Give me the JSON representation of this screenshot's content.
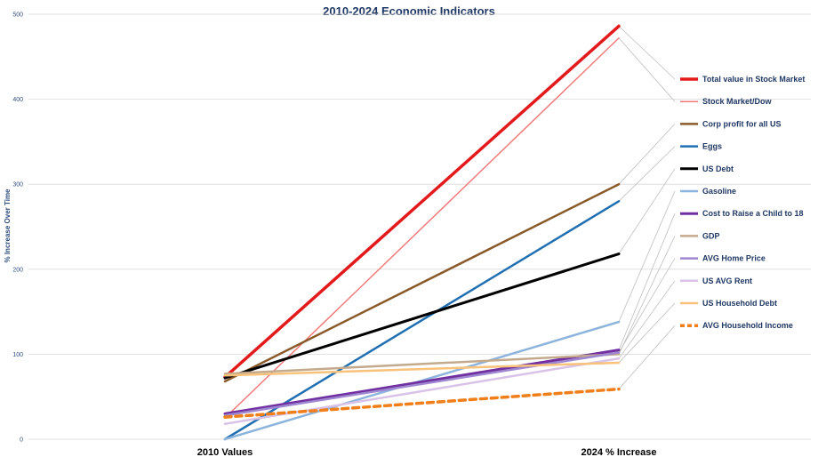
{
  "chart_data": {
    "type": "line",
    "title": "2010-2024 Economic Indicators",
    "xlabel": "",
    "ylabel": "% Increase Over Time",
    "categories": [
      "2010 Values",
      "2024 % Increase"
    ],
    "ylim": [
      0,
      500
    ],
    "yticks": [
      0,
      100,
      200,
      300,
      400,
      500
    ],
    "grid": true,
    "legend_placement": "right",
    "series": [
      {
        "name": "Total value in Stock Market",
        "values": [
          73,
          486
        ],
        "color": "#e31a1c",
        "width": 3.5,
        "dashed": false
      },
      {
        "name": "Stock Market/Dow",
        "values": [
          25,
          472
        ],
        "color": "#f07a7a",
        "width": 1.5,
        "dashed": false
      },
      {
        "name": "Corp profit for all US",
        "values": [
          68,
          300
        ],
        "color": "#8b5a2b",
        "width": 2.5,
        "dashed": false
      },
      {
        "name": "Eggs",
        "values": [
          0,
          280
        ],
        "color": "#1f6fb2",
        "width": 2.5,
        "dashed": false
      },
      {
        "name": "US Debt",
        "values": [
          72,
          218
        ],
        "color": "#000000",
        "width": 3,
        "dashed": false
      },
      {
        "name": "Gasoline",
        "values": [
          0,
          138
        ],
        "color": "#8db4dc",
        "width": 2.5,
        "dashed": false
      },
      {
        "name": "Cost to Raise a Child to 18",
        "values": [
          30,
          105
        ],
        "color": "#7030a0",
        "width": 3,
        "dashed": false
      },
      {
        "name": "GDP",
        "values": [
          77,
          100
        ],
        "color": "#c4aa8c",
        "width": 2.5,
        "dashed": false
      },
      {
        "name": "AVG Home Price",
        "values": [
          28,
          102
        ],
        "color": "#9f86d0",
        "width": 2.5,
        "dashed": false
      },
      {
        "name": "US AVG Rent",
        "values": [
          18,
          95
        ],
        "color": "#d9c2e8",
        "width": 2.5,
        "dashed": false
      },
      {
        "name": "US Household Debt",
        "values": [
          75,
          90
        ],
        "color": "#f9c27a",
        "width": 2.5,
        "dashed": false
      },
      {
        "name": "AVG Household Income",
        "values": [
          26,
          59
        ],
        "color": "#f07f1a",
        "width": 3.5,
        "dashed": true
      }
    ]
  }
}
